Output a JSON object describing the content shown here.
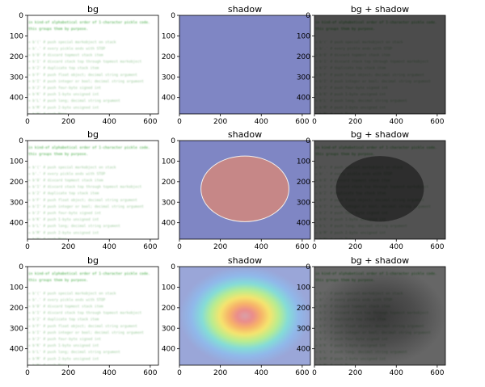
{
  "figure": {
    "colors": {
      "shadow_background": "#7f86c4",
      "ellipse_fill": "#c68787",
      "ellipse_edge": "#f5f0ec",
      "code_green": "#3aa63a",
      "code_text_light": "#9ccc9c",
      "dark_panel": "#4a4a4a"
    }
  },
  "chart_data": [
    {
      "type": "heatmap",
      "title": "bg",
      "xlim": [
        0,
        640
      ],
      "ylim": [
        480,
        0
      ],
      "xticks": [
        "0",
        "200",
        "400",
        "600"
      ],
      "yticks": [
        "0",
        "100",
        "200",
        "300",
        "400"
      ],
      "image": "code-text",
      "shadow": "none",
      "composite": false
    },
    {
      "type": "heatmap",
      "title": "shadow",
      "xlim": [
        0,
        640
      ],
      "ylim": [
        480,
        0
      ],
      "xticks": [
        "0",
        "200",
        "400",
        "600"
      ],
      "yticks": [
        "0",
        "100",
        "200",
        "300",
        "400"
      ],
      "image": "flat",
      "shadow": "none",
      "composite": false
    },
    {
      "type": "heatmap",
      "title": "bg + shadow",
      "xlim": [
        0,
        640
      ],
      "ylim": [
        480,
        0
      ],
      "xticks": [
        "0",
        "200",
        "400",
        "600"
      ],
      "yticks": [
        "0",
        "100",
        "200",
        "300",
        "400"
      ],
      "image": "code-text",
      "shadow": "flat",
      "composite": true
    },
    {
      "type": "heatmap",
      "title": "bg",
      "xlim": [
        0,
        640
      ],
      "ylim": [
        480,
        0
      ],
      "xticks": [
        "0",
        "200",
        "400",
        "600"
      ],
      "yticks": [
        "0",
        "100",
        "200",
        "300",
        "400"
      ],
      "image": "code-text",
      "shadow": "none",
      "composite": false
    },
    {
      "type": "heatmap",
      "title": "shadow",
      "xlim": [
        0,
        640
      ],
      "ylim": [
        480,
        0
      ],
      "xticks": [
        "0",
        "200",
        "400",
        "600"
      ],
      "yticks": [
        "0",
        "100",
        "200",
        "300",
        "400"
      ],
      "image": "ellipse",
      "ellipse": {
        "cx": 320,
        "cy": 235,
        "rx": 215,
        "ry": 160
      },
      "shadow": "none",
      "composite": false
    },
    {
      "type": "heatmap",
      "title": "bg + shadow",
      "xlim": [
        0,
        640
      ],
      "ylim": [
        480,
        0
      ],
      "xticks": [
        "0",
        "200",
        "400",
        "600"
      ],
      "yticks": [
        "0",
        "100",
        "200",
        "300",
        "400"
      ],
      "image": "code-text",
      "shadow": "ellipse",
      "ellipse": {
        "cx": 320,
        "cy": 235,
        "rx": 215,
        "ry": 160
      },
      "composite": true
    },
    {
      "type": "heatmap",
      "title": "bg",
      "xlim": [
        0,
        640
      ],
      "ylim": [
        480,
        0
      ],
      "xticks": [
        "0",
        "200",
        "400",
        "600"
      ],
      "yticks": [
        "0",
        "100",
        "200",
        "300",
        "400"
      ],
      "image": "code-text",
      "shadow": "none",
      "composite": false
    },
    {
      "type": "heatmap",
      "title": "shadow",
      "xlim": [
        0,
        640
      ],
      "ylim": [
        480,
        0
      ],
      "xticks": [
        "0",
        "200",
        "400",
        "600"
      ],
      "yticks": [
        "0",
        "100",
        "200",
        "300",
        "400"
      ],
      "image": "gaussian",
      "colormap": "jet",
      "gaussian": {
        "cx": 320,
        "cy": 240
      },
      "shadow": "none",
      "composite": false
    },
    {
      "type": "heatmap",
      "title": "bg + shadow",
      "xlim": [
        0,
        640
      ],
      "ylim": [
        480,
        0
      ],
      "xticks": [
        "0",
        "200",
        "400",
        "600"
      ],
      "yticks": [
        "0",
        "100",
        "200",
        "300",
        "400"
      ],
      "image": "code-text",
      "shadow": "gaussian",
      "gaussian": {
        "cx": 320,
        "cy": 240
      },
      "composite": true
    }
  ],
  "code_lines": [
    "in kind-of alphabetical order of 1-character pickle code.",
    "this groups them by purpose.",
    "",
    "= b'('   # push special markobject on stack",
    "= b'.'   # every pickle ends with STOP",
    "= b'0'   # discard topmost stack item",
    "= b'1'   # discard stack top through topmost markobject",
    "= b'2'   # duplicate top stack item",
    "= b'F'   # push float object; decimal string argument",
    "= b'I'   # push integer or bool; decimal string argument",
    "= b'J'   # push four-byte signed int",
    "= b'K'   # push 1-byte unsigned int",
    "= b'L'   # push long; decimal string argument",
    "= b'M'   # push 2-byte unsigned int",
    "= b'N'   # push None"
  ]
}
